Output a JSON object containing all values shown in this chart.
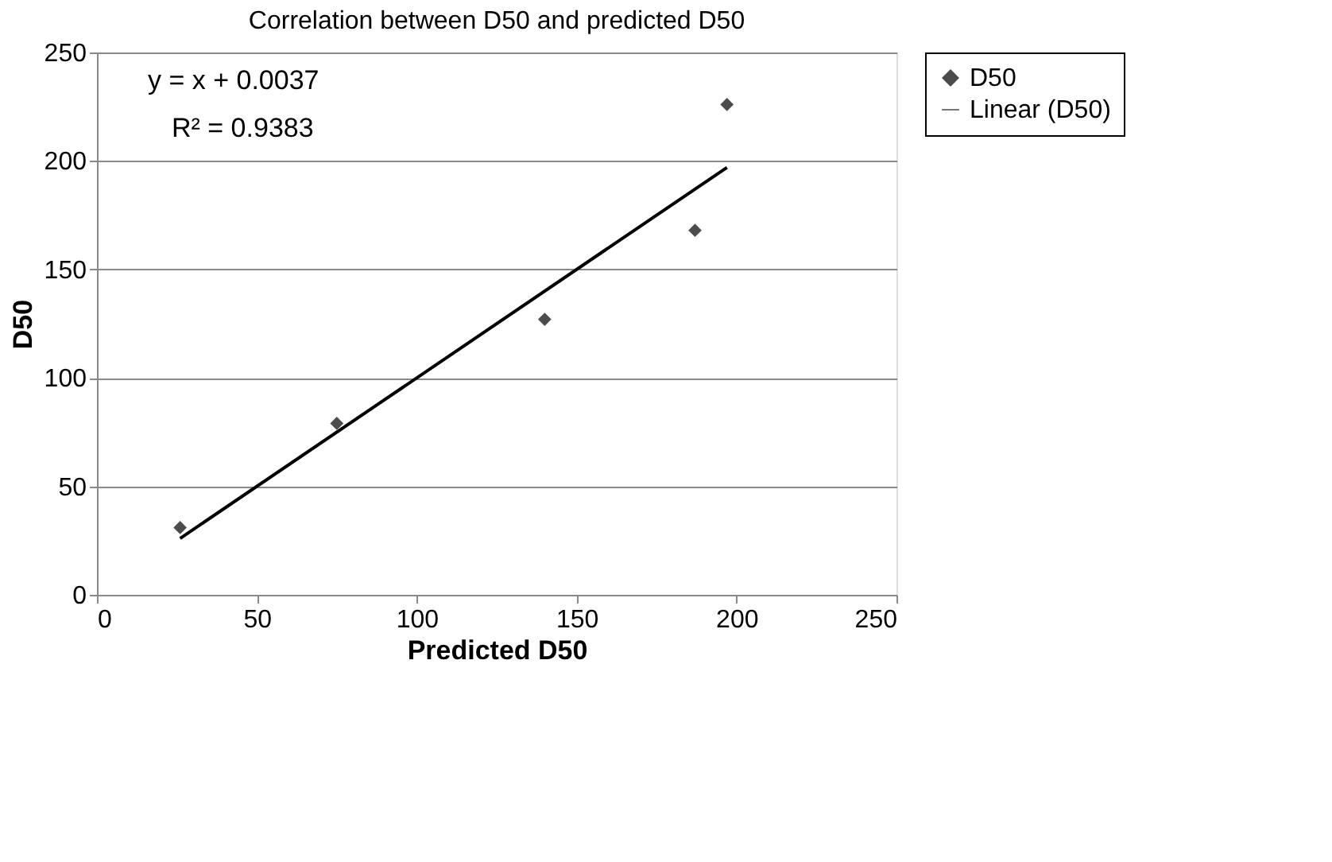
{
  "chart_data": {
    "type": "scatter",
    "title": "Correlation between D50 and predicted D50",
    "xlabel": "Predicted D50",
    "ylabel": "D50",
    "series": [
      {
        "name": "D50",
        "type": "scatter",
        "color": "#000000",
        "marker": "diamond",
        "x": [
          26,
          75,
          140,
          187,
          197
        ],
        "values": [
          31,
          79,
          127,
          168,
          226
        ]
      },
      {
        "name": "Linear (D50)",
        "type": "line",
        "color": "#000000",
        "marker": "none",
        "line_style": "solid",
        "x": [
          26,
          197
        ],
        "values": [
          26,
          197
        ]
      }
    ],
    "xlim": [
      0,
      250
    ],
    "xticks": [
      0,
      50,
      100,
      150,
      200,
      250
    ],
    "ylim": [
      0,
      250
    ],
    "yticks": [
      0,
      50,
      100,
      150,
      200,
      250
    ],
    "grid": "y",
    "legend": "right",
    "annotations": [
      "y = x + 0.0037",
      "R² = 0.9383"
    ]
  }
}
